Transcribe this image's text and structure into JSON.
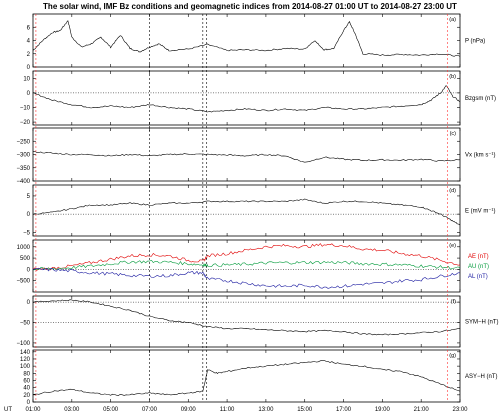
{
  "title": "The solar wind, IMF Bz conditions and geomagnetic indices from 2014-08-27 01:00 UT to 2014-08-27 23:00 UT",
  "x_axis": {
    "unit_label": "UT",
    "ticks": [
      "01:00",
      "03:00",
      "05:00",
      "07:00",
      "09:00",
      "11:00",
      "13:00",
      "15:00",
      "17:00",
      "19:00",
      "21:00",
      "23:00"
    ],
    "range_hours": [
      1,
      23
    ]
  },
  "markers": {
    "dashed_black_hours": [
      7.0,
      9.75,
      9.95
    ],
    "dashed_red_hours": [
      1.15,
      22.35
    ]
  },
  "colors": {
    "black": "#000000",
    "red": "#e00000",
    "green": "#009a3a",
    "blue": "#1a1aa0",
    "marker_red": "#ff3333"
  },
  "chart_data": [
    {
      "id": "a",
      "panel_id": "(a)",
      "type": "line",
      "ylabel": "P (nPa)",
      "ylim": [
        0,
        8
      ],
      "yticks": [
        0,
        2,
        4,
        6
      ],
      "ref_lines": [],
      "series": [
        {
          "name": "P",
          "color": "#000000",
          "x": [
            1,
            1.5,
            2,
            2.4,
            2.8,
            3,
            3.5,
            4,
            4.5,
            5,
            5.5,
            6,
            6.5,
            7,
            7.5,
            8,
            9,
            10,
            11,
            12,
            13,
            14,
            15,
            15.5,
            16,
            16.5,
            17,
            17.3,
            17.6,
            18,
            19,
            20,
            21,
            22,
            23
          ],
          "values": [
            2.5,
            4.0,
            5.2,
            5.5,
            7.0,
            4.5,
            3.0,
            3.5,
            4.5,
            3.0,
            4.8,
            2.8,
            2.3,
            3.0,
            3.5,
            2.5,
            2.7,
            3.4,
            2.5,
            2.6,
            2.5,
            2.8,
            2.7,
            4.0,
            2.6,
            2.8,
            5.5,
            6.8,
            5.0,
            2.0,
            1.8,
            1.9,
            1.8,
            2.0,
            1.6
          ]
        }
      ]
    },
    {
      "id": "b",
      "panel_id": "(b)",
      "type": "line",
      "ylabel": "Bzgsm (nT)",
      "ylim": [
        -22,
        15
      ],
      "yticks": [
        -20,
        -10,
        0,
        10
      ],
      "ref_lines": [
        0
      ],
      "series": [
        {
          "name": "Bz",
          "color": "#000000",
          "x": [
            1,
            2,
            3,
            4,
            5,
            6,
            7,
            8,
            9,
            10,
            11,
            12,
            13,
            14,
            15,
            16,
            17,
            18,
            19,
            20,
            21,
            21.5,
            22,
            22.3,
            22.6,
            23
          ],
          "values": [
            0,
            -5,
            -8,
            -10,
            -9,
            -10,
            -8,
            -10,
            -11,
            -13,
            -12,
            -11,
            -12,
            -11,
            -12,
            -10,
            -11,
            -11,
            -10,
            -9,
            -8,
            -5,
            0,
            5,
            -2,
            -6
          ]
        }
      ]
    },
    {
      "id": "c",
      "panel_id": "(c)",
      "type": "line",
      "ylabel": "Vx (km s⁻¹)",
      "ylim": [
        -400,
        -200
      ],
      "yticks": [
        -400,
        -350,
        -300,
        -250
      ],
      "ref_lines": [],
      "series": [
        {
          "name": "Vx",
          "color": "#000000",
          "x": [
            1,
            2,
            3,
            4,
            5,
            6,
            7,
            8,
            9,
            10,
            11,
            12,
            13,
            14,
            15,
            16,
            17,
            18,
            19,
            20,
            21,
            22,
            23
          ],
          "values": [
            -290,
            -295,
            -300,
            -300,
            -305,
            -300,
            -305,
            -300,
            -298,
            -300,
            -302,
            -305,
            -300,
            -305,
            -330,
            -310,
            -318,
            -322,
            -320,
            -322,
            -318,
            -325,
            -320
          ]
        }
      ]
    },
    {
      "id": "d",
      "panel_id": "(d)",
      "type": "line",
      "ylabel": "E (mV m⁻¹)",
      "ylim": [
        -6,
        8
      ],
      "yticks": [
        -5,
        0,
        5
      ],
      "ref_lines": [
        0
      ],
      "series": [
        {
          "name": "E",
          "color": "#000000",
          "x": [
            1,
            2,
            3,
            4,
            5,
            6,
            7,
            8,
            9,
            10,
            11,
            12,
            13,
            14,
            15,
            16,
            17,
            18,
            19,
            20,
            21,
            21.5,
            22,
            22.5,
            23
          ],
          "values": [
            0,
            0.5,
            1.5,
            2.5,
            2.5,
            3,
            2.5,
            3,
            3,
            3.5,
            3.5,
            3.5,
            3.5,
            3.5,
            4,
            3,
            3.5,
            3.5,
            3,
            2.5,
            2,
            1,
            0,
            -1.5,
            -3
          ]
        }
      ]
    },
    {
      "id": "e",
      "panel_id": "(e)",
      "type": "line",
      "ylabel": "",
      "ylim": [
        -1000,
        1300
      ],
      "yticks": [
        -500,
        0,
        500,
        1000
      ],
      "ref_lines": [
        0
      ],
      "series": [
        {
          "name": "AE (nT)",
          "color": "#e00000",
          "x": [
            1,
            2,
            3,
            4,
            5,
            6,
            7,
            8,
            9,
            9.75,
            10,
            11,
            12,
            13,
            14,
            15,
            16,
            17,
            18,
            19,
            20,
            21,
            22,
            23
          ],
          "values": [
            0,
            50,
            150,
            300,
            450,
            600,
            650,
            600,
            400,
            350,
            600,
            700,
            850,
            1000,
            1050,
            1000,
            1100,
            1050,
            900,
            850,
            700,
            600,
            400,
            200
          ]
        },
        {
          "name": "AU (nT)",
          "color": "#009a3a",
          "x": [
            1,
            2,
            3,
            4,
            5,
            6,
            7,
            8,
            9,
            9.75,
            10,
            11,
            12,
            13,
            14,
            15,
            16,
            17,
            18,
            19,
            20,
            21,
            22,
            23
          ],
          "values": [
            0,
            30,
            80,
            150,
            250,
            330,
            350,
            320,
            250,
            200,
            180,
            200,
            230,
            280,
            300,
            300,
            320,
            300,
            250,
            230,
            200,
            150,
            100,
            50
          ]
        },
        {
          "name": "AL (nT)",
          "color": "#1a1aa0",
          "x": [
            1,
            2,
            3,
            4,
            5,
            6,
            7,
            8,
            9,
            9.75,
            10,
            11,
            12,
            13,
            14,
            15,
            16,
            17,
            18,
            19,
            20,
            21,
            22,
            23
          ],
          "values": [
            0,
            -20,
            -70,
            -150,
            -200,
            -270,
            -300,
            -280,
            -150,
            -150,
            -420,
            -500,
            -620,
            -720,
            -750,
            -700,
            -780,
            -750,
            -650,
            -620,
            -500,
            -450,
            -300,
            -150
          ]
        }
      ]
    },
    {
      "id": "f",
      "panel_id": "(f)",
      "type": "line",
      "ylabel": "SYM−H (nT)",
      "ylim": [
        -110,
        15
      ],
      "yticks": [
        -100,
        -50,
        0
      ],
      "ref_lines": [
        0,
        -50
      ],
      "series": [
        {
          "name": "SYM-H",
          "color": "#000000",
          "x": [
            1,
            2,
            3,
            4,
            5,
            6,
            7,
            8,
            9,
            10,
            11,
            12,
            13,
            14,
            15,
            16,
            17,
            18,
            19,
            20,
            21,
            22,
            23
          ],
          "values": [
            0,
            3,
            5,
            0,
            -10,
            -20,
            -35,
            -45,
            -50,
            -60,
            -65,
            -65,
            -68,
            -70,
            -72,
            -70,
            -72,
            -78,
            -80,
            -78,
            -75,
            -72,
            -65
          ]
        }
      ]
    },
    {
      "id": "g",
      "panel_id": "(g)",
      "type": "line",
      "ylabel": "ASY−H (nT)",
      "ylim": [
        0,
        145
      ],
      "yticks": [
        0,
        20,
        40,
        60,
        80,
        100,
        120,
        140
      ],
      "ref_lines": [],
      "series": [
        {
          "name": "ASY-H",
          "color": "#000000",
          "x": [
            1,
            2,
            3,
            4,
            5,
            6,
            7,
            8,
            9,
            9.75,
            10,
            10.5,
            11,
            12,
            13,
            14,
            15,
            16,
            17,
            18,
            19,
            20,
            21,
            22,
            23
          ],
          "values": [
            20,
            30,
            35,
            25,
            20,
            20,
            25,
            20,
            25,
            30,
            90,
            80,
            85,
            95,
            100,
            105,
            110,
            115,
            105,
            100,
            90,
            85,
            70,
            50,
            30
          ]
        }
      ]
    }
  ]
}
